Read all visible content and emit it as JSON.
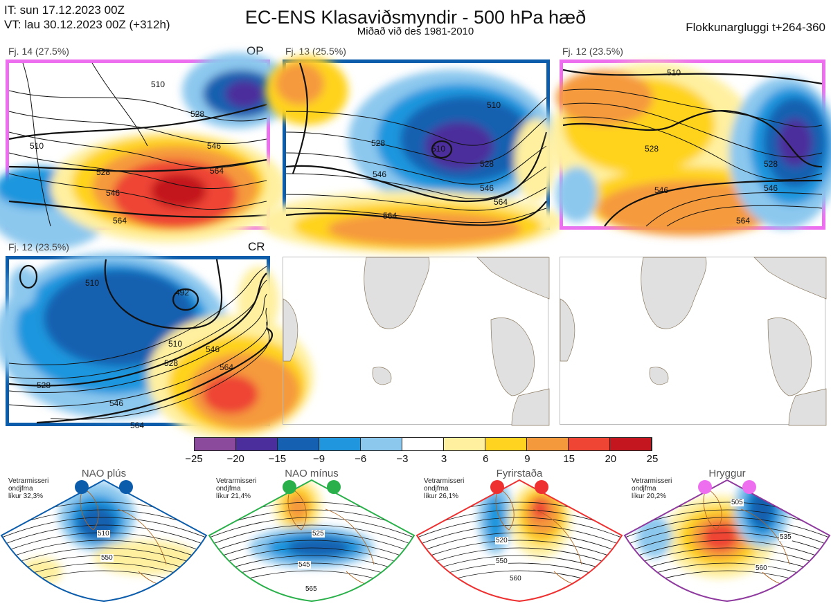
{
  "header": {
    "it": "IT: sun 17.12.2023 00Z",
    "vt": "VT: lau 30.12.2023 00Z  (+312h)",
    "title": "EC-ENS Klasaviðsmyndir - 500 hPa hæð",
    "subtitle": "Miðað við des 1981-2010",
    "window": "Flokkunargluggi t+264-360"
  },
  "panels": [
    {
      "label": "Fj. 14 (27.5%)",
      "tag": "OP",
      "frame": "#ee6ef0",
      "contours": [
        "510",
        "528",
        "546",
        "564",
        "528",
        "546",
        "564",
        "510"
      ]
    },
    {
      "label": "Fj. 13 (25.5%)",
      "tag": "",
      "frame": "#0b5cab",
      "contours": [
        "510",
        "528",
        "546",
        "564",
        "528",
        "510",
        "546",
        "564"
      ]
    },
    {
      "label": "Fj. 12 (23.5%)",
      "tag": "",
      "frame": "#ee6ef0",
      "contours": [
        "510",
        "528",
        "546",
        "564",
        "528",
        "546"
      ]
    },
    {
      "label": "Fj. 12 (23.5%)",
      "tag": "CR",
      "frame": "#0b5cab",
      "contours": [
        "510",
        "528",
        "546",
        "564",
        "492",
        "510",
        "528",
        "546",
        "564"
      ]
    }
  ],
  "colorbar": {
    "ticks": [
      "−25",
      "−20",
      "−15",
      "−9",
      "−6",
      "−3",
      "3",
      "6",
      "9",
      "15",
      "20",
      "25"
    ],
    "colors": [
      "#8b4a9c",
      "#4b2e9c",
      "#1560b0",
      "#1f96de",
      "#8cc8ee",
      "#ffffff",
      "#fff0a0",
      "#ffd31f",
      "#f59a3c",
      "#ee4534",
      "#c3161e"
    ]
  },
  "regimes": [
    {
      "name": "NAO plús",
      "note1": "Vetrarmisseri",
      "note2": "ondjfma",
      "note3": "líkur 32,3%",
      "dot": "#0b5cab",
      "frame": "#0b5cab",
      "contours": [
        "510",
        "550"
      ]
    },
    {
      "name": "NAO mínus",
      "note1": "Vetrarmisseri",
      "note2": "ondjfma",
      "note3": "líkur 21,4%",
      "dot": "#2ab04a",
      "frame": "#2ab04a",
      "contours": [
        "525",
        "545",
        "565"
      ]
    },
    {
      "name": "Fyrirstaða",
      "note1": "Vetrarmisseri",
      "note2": "ondjfma",
      "note3": "líkur 26,1%",
      "dot": "#ee3030",
      "frame": "#ee3030",
      "contours": [
        "520",
        "550",
        "560"
      ]
    },
    {
      "name": "Hryggur",
      "note1": "Vetrarmisseri",
      "note2": "ondjfma",
      "note3": "líkur 20,2%",
      "dot": "#ee6ef0",
      "frame": "#8e3a9e",
      "contours": [
        "505",
        "535",
        "560"
      ]
    }
  ]
}
